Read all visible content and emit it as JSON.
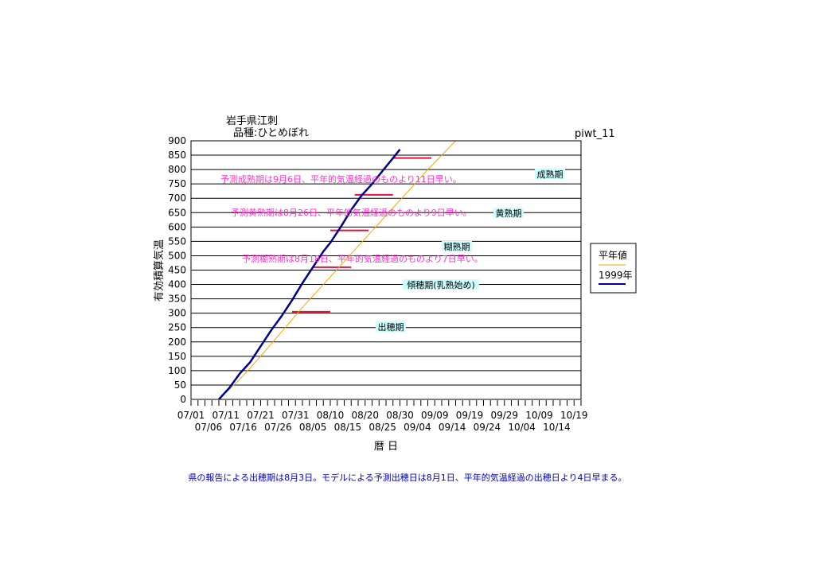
{
  "chart_data": {
    "type": "line",
    "title": "岩手県江刺",
    "subtitle": "品種:ひとめぼれ",
    "code": "piwt_11",
    "ylabel": "有効積算気温",
    "xlabel": "暦 日",
    "ylim": [
      0,
      900
    ],
    "yticks": [
      0,
      50,
      100,
      150,
      200,
      250,
      300,
      350,
      400,
      450,
      500,
      550,
      600,
      650,
      700,
      750,
      800,
      850,
      900
    ],
    "xlim": [
      "07/01",
      "10/21"
    ],
    "x_tick_labels_top": [
      "07/01",
      "07/11",
      "07/21",
      "07/31",
      "08/10",
      "08/20",
      "08/30",
      "09/09",
      "09/19",
      "09/29",
      "10/09",
      "10/19"
    ],
    "x_tick_labels_bottom": [
      "07/06",
      "07/16",
      "07/26",
      "08/05",
      "08/15",
      "08/25",
      "09/04",
      "09/14",
      "09/24",
      "10/04",
      "10/14"
    ],
    "legend_position": "right",
    "series": [
      {
        "name": "平年値",
        "color": "#ffa500",
        "points": [
          [
            "07/09",
            0
          ],
          [
            "07/15",
            70
          ],
          [
            "07/21",
            150
          ],
          [
            "07/27",
            235
          ],
          [
            "08/02",
            320
          ],
          [
            "08/08",
            400
          ],
          [
            "08/14",
            480
          ],
          [
            "08/20",
            560
          ],
          [
            "08/26",
            640
          ],
          [
            "09/01",
            720
          ],
          [
            "09/07",
            800
          ],
          [
            "09/13",
            875
          ],
          [
            "09/15",
            900
          ]
        ]
      },
      {
        "name": "1999年",
        "color": "#00008b",
        "points": [
          [
            "07/09",
            0
          ],
          [
            "07/12",
            40
          ],
          [
            "07/15",
            90
          ],
          [
            "07/18",
            130
          ],
          [
            "07/21",
            185
          ],
          [
            "07/24",
            240
          ],
          [
            "07/27",
            290
          ],
          [
            "07/30",
            345
          ],
          [
            "08/02",
            405
          ],
          [
            "08/05",
            460
          ],
          [
            "08/08",
            515
          ],
          [
            "08/10",
            545
          ],
          [
            "08/13",
            600
          ],
          [
            "08/16",
            660
          ],
          [
            "08/19",
            710
          ],
          [
            "08/22",
            750
          ],
          [
            "08/25",
            795
          ],
          [
            "08/28",
            840
          ],
          [
            "08/30",
            870
          ]
        ]
      }
    ],
    "stage_marks": [
      {
        "x_start": "07/30",
        "x_end": "08/10",
        "y": 305
      },
      {
        "x_start": "08/05",
        "x_end": "08/16",
        "y": 460
      },
      {
        "x_start": "08/10",
        "x_end": "08/21",
        "y": 588
      },
      {
        "x_start": "08/17",
        "x_end": "08/28",
        "y": 712
      },
      {
        "x_start": "08/28",
        "x_end": "09/08",
        "y": 840
      }
    ],
    "stage_labels": [
      "出穂期",
      "傾穂期(乳熟始め)",
      "糊熟期",
      "黄熟期",
      "成熟期"
    ],
    "annotations": [
      "予測成熟期は9月6日、平年的気温経過のものより11日早い。",
      "予測黄熟期は8月26日、平年的気温経過のものより9日早い。",
      "予測糊熟期は8月18日、平年的気温経過のものより7日早い。"
    ]
  },
  "colors": {
    "annotation": "#ff33cc",
    "stage_mark": "#dc143c",
    "stage_label_bg": "#ccffff",
    "footer": "#0000cc"
  },
  "footer": "県の報告による出穂期は8月3日。モデルによる予測出穂日は8月1日、平年的気温経過の出穂日より4日早まる。"
}
